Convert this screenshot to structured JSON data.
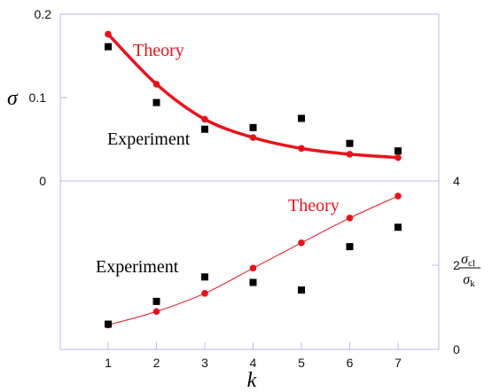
{
  "chart_data": [
    {
      "type": "line",
      "panel": "top",
      "x": [
        1,
        2,
        3,
        4,
        5,
        6,
        7
      ],
      "xlabel": "k",
      "ylabel": "σ",
      "ylim": [
        0,
        0.2
      ],
      "yticks": [
        0,
        0.1,
        0.2
      ],
      "ytick_labels": [
        "0",
        "0.1",
        "0.2"
      ],
      "series": [
        {
          "name": "Theory",
          "style": "line+circle",
          "color": "#e8121b",
          "values": [
            0.176,
            0.116,
            0.074,
            0.052,
            0.039,
            0.032,
            0.028
          ]
        },
        {
          "name": "Experiment",
          "style": "square",
          "color": "#000000",
          "values": [
            0.161,
            0.094,
            0.062,
            0.064,
            0.075,
            0.045,
            0.036
          ]
        }
      ]
    },
    {
      "type": "line",
      "panel": "bottom",
      "x": [
        1,
        2,
        3,
        4,
        5,
        6,
        7
      ],
      "xlabel": "k",
      "ylabel_right": "σcl / σk",
      "ylabel_right_numerator": "σ",
      "ylabel_right_numerator_sub": "cl",
      "ylabel_right_denominator": "σ",
      "ylabel_right_denominator_sub": "k",
      "ylim": [
        0,
        4
      ],
      "yticks": [
        0,
        2,
        4
      ],
      "ytick_labels": [
        "0",
        "2",
        "4"
      ],
      "series": [
        {
          "name": "Theory",
          "style": "thin-line+circle",
          "color": "#e8121b",
          "values": [
            0.58,
            0.9,
            1.33,
            1.93,
            2.53,
            3.12,
            3.64
          ]
        },
        {
          "name": "Experiment",
          "style": "square",
          "color": "#000000",
          "values": [
            0.6,
            1.14,
            1.72,
            1.59,
            1.41,
            2.44,
            2.9
          ]
        }
      ]
    }
  ],
  "xtick_labels": [
    "1",
    "2",
    "3",
    "4",
    "5",
    "6",
    "7"
  ],
  "labels": {
    "top_theory": "Theory",
    "top_experiment": "Experiment",
    "bottom_theory": "Theory",
    "bottom_experiment": "Experiment"
  },
  "colors": {
    "theory": "#e8121b",
    "experiment": "#000000",
    "frame": "#b8b8ee"
  }
}
